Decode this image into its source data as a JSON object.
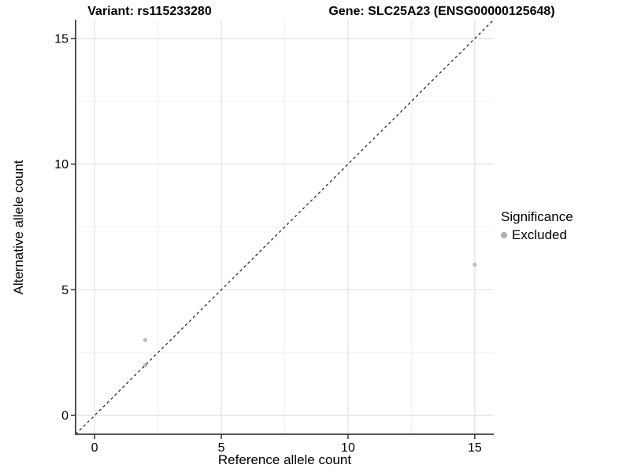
{
  "chart_data": {
    "type": "scatter",
    "title_left": "Variant: rs115233280",
    "title_right": "Gene: SLC25A23 (ENSG00000125648)",
    "xlabel": "Reference allele count",
    "ylabel": "Alternative allele count",
    "xlim": [
      -0.75,
      15.75
    ],
    "ylim": [
      -0.75,
      15.75
    ],
    "x_major_ticks": [
      0,
      5,
      10,
      15
    ],
    "y_major_ticks": [
      0,
      5,
      10,
      15
    ],
    "x_minor_ticks": [
      2.5,
      7.5,
      12.5
    ],
    "y_minor_ticks": [
      2.5,
      7.5,
      12.5
    ],
    "grid": "major+minor",
    "identity_line": {
      "type": "y=x",
      "style": "dashed"
    },
    "series": [
      {
        "name": "Excluded",
        "marker": "circle",
        "color": "#bebebe",
        "points": [
          {
            "x": 2,
            "y": 2
          },
          {
            "x": 2,
            "y": 3
          },
          {
            "x": 15,
            "y": 6
          }
        ]
      }
    ],
    "legend": {
      "position": "right",
      "title": "Significance",
      "items": [
        {
          "label": "Excluded",
          "color": "#b0b0b0"
        }
      ]
    }
  },
  "colors": {
    "background": "#ffffff",
    "point": "#bebebe",
    "legend_dot": "#b0b0b0",
    "axis_line": "#404040",
    "tick_mark": "#333333",
    "grid_major": "#e3e3e3",
    "grid_minor": "#f0f0f0",
    "dashed_line": "#1a1a1a",
    "text": "#000000"
  }
}
